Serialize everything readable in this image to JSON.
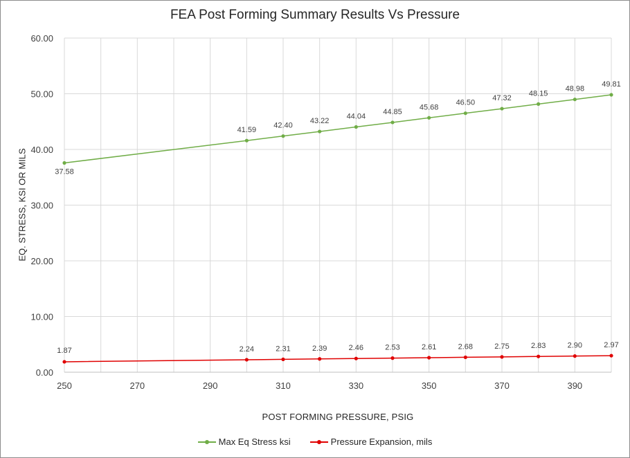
{
  "chart_data": {
    "type": "line",
    "title": "FEA Post Forming Summary Results Vs Pressure",
    "xlabel": "POST FORMING PRESSURE, PSIG",
    "ylabel": "EQ. STRESS, KSI OR MILS",
    "xlim": [
      250,
      400
    ],
    "ylim": [
      0,
      60
    ],
    "x_ticks": [
      250,
      270,
      290,
      310,
      330,
      350,
      370,
      390
    ],
    "x_grid": [
      250,
      260,
      270,
      280,
      290,
      300,
      310,
      320,
      330,
      340,
      350,
      360,
      370,
      380,
      390,
      400
    ],
    "y_ticks": [
      0,
      10,
      20,
      30,
      40,
      50,
      60
    ],
    "y_tick_labels": [
      "0.00",
      "10.00",
      "20.00",
      "30.00",
      "40.00",
      "50.00",
      "60.00"
    ],
    "grid": true,
    "legend_position": "bottom",
    "series": [
      {
        "name": "Max Eq Stress ksi",
        "color": "#70ad47",
        "x": [
          250,
          300,
          310,
          320,
          330,
          340,
          350,
          360,
          370,
          380,
          390,
          400
        ],
        "values": [
          37.58,
          41.59,
          42.4,
          43.22,
          44.04,
          44.85,
          45.68,
          46.5,
          47.32,
          48.15,
          48.98,
          49.81
        ],
        "labels": [
          "37.58",
          "41.59",
          "42.40",
          "43.22",
          "44.04",
          "44.85",
          "45.68",
          "46.50",
          "47.32",
          "48.15",
          "48.98",
          "49.81"
        ],
        "first_label_below": true
      },
      {
        "name": "Pressure Expansion, mils",
        "color": "#e00000",
        "x": [
          250,
          300,
          310,
          320,
          330,
          340,
          350,
          360,
          370,
          380,
          390,
          400
        ],
        "values": [
          1.87,
          2.24,
          2.31,
          2.39,
          2.46,
          2.53,
          2.61,
          2.68,
          2.75,
          2.83,
          2.9,
          2.97
        ],
        "labels": [
          "1.87",
          "2.24",
          "2.31",
          "2.39",
          "2.46",
          "2.53",
          "2.61",
          "2.68",
          "2.75",
          "2.83",
          "2.90",
          "2.97"
        ],
        "first_label_below": false
      }
    ]
  }
}
